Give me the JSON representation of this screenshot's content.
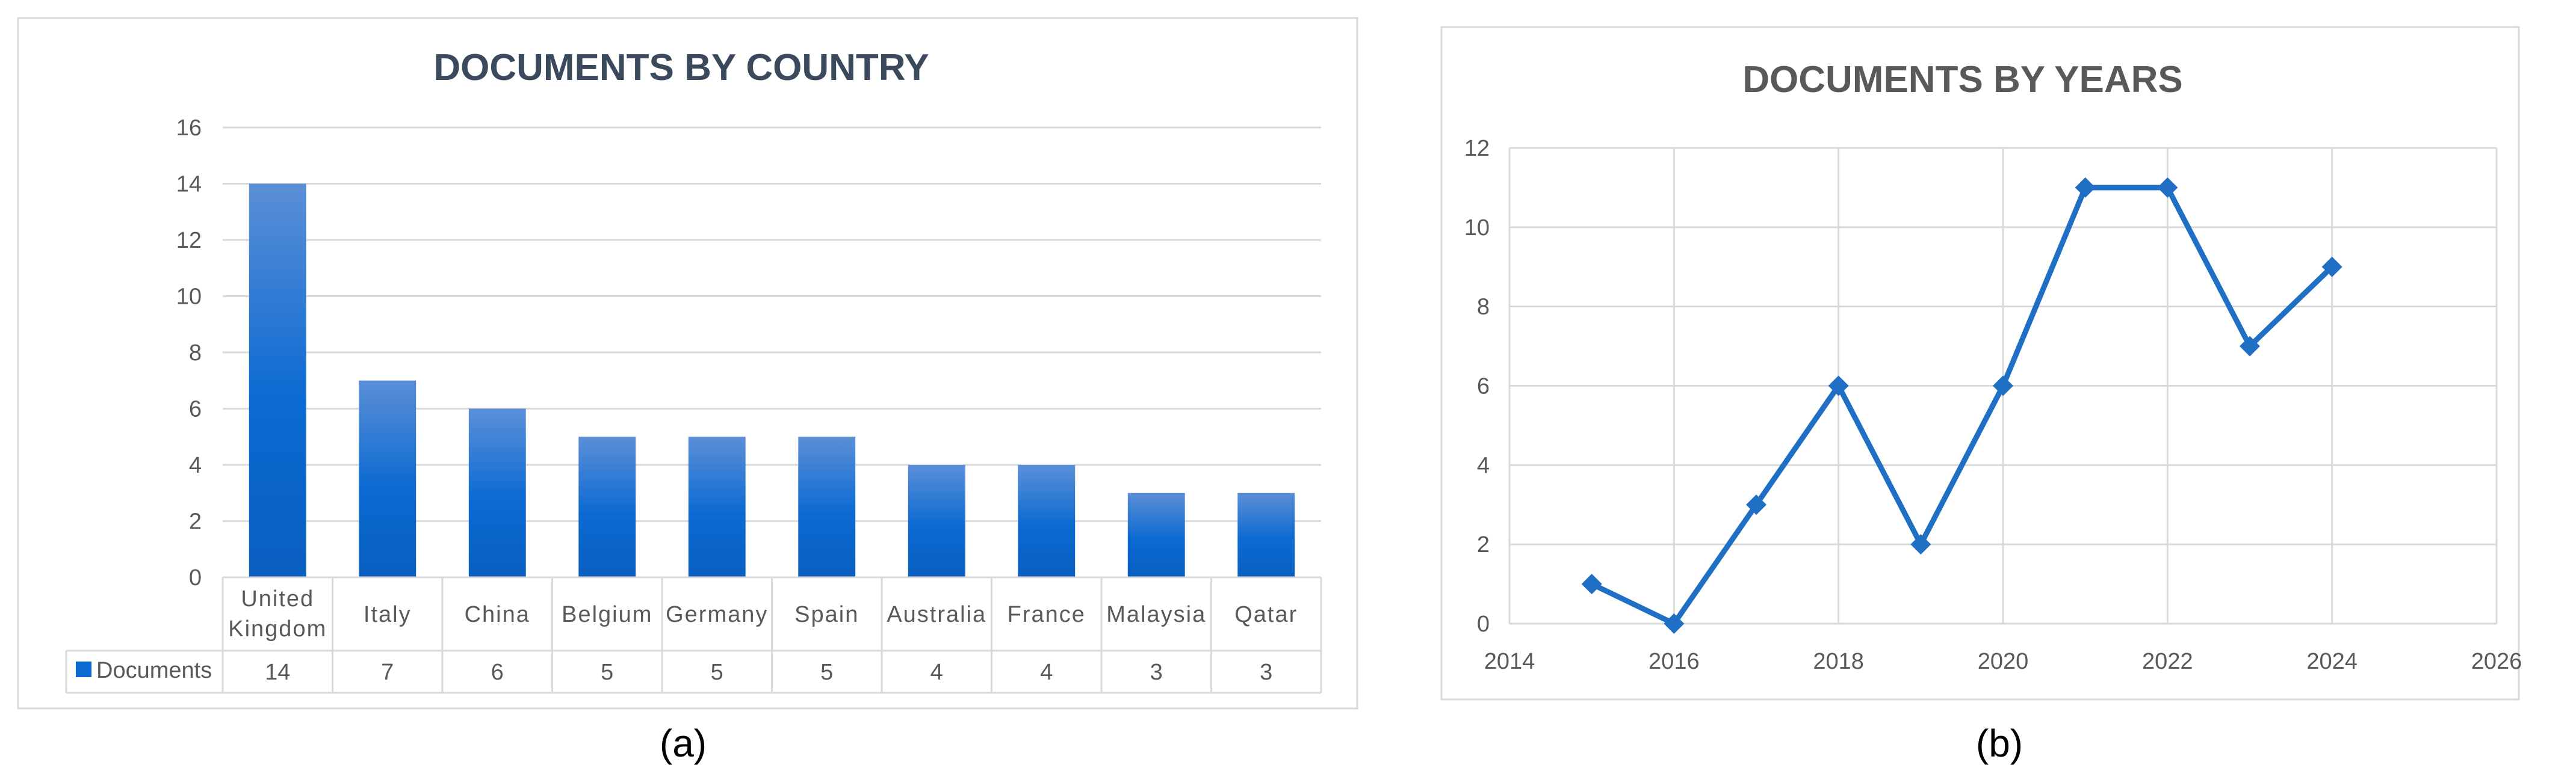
{
  "panels": {
    "a_label": "(a)",
    "b_label": "(b)"
  },
  "colors": {
    "bar_top": "#5b8fd6",
    "bar_bottom": "#0a5fc0",
    "line": "#1f6fc4",
    "title_a": "#3a4a5c",
    "title_b": "#595959",
    "grid": "#d9d9d9",
    "frame": "#d9d9d9",
    "tick_text": "#595959"
  },
  "chart_data": [
    {
      "type": "bar",
      "title": "DOCUMENTS BY COUNTRY",
      "categories": [
        "United Kingdom",
        "Italy",
        "China",
        "Belgium",
        "Germany",
        "Spain",
        "Australia",
        "France",
        "Malaysia",
        "Qatar"
      ],
      "category_lines": [
        [
          "United",
          "Kingdom"
        ],
        [
          "Italy"
        ],
        [
          "China"
        ],
        [
          "Belgium"
        ],
        [
          "Germany"
        ],
        [
          "Spain"
        ],
        [
          "Australia"
        ],
        [
          "France"
        ],
        [
          "Malaysia"
        ],
        [
          "Qatar"
        ]
      ],
      "series": [
        {
          "name": "Documents",
          "values": [
            14,
            7,
            6,
            5,
            5,
            5,
            4,
            4,
            3,
            3
          ]
        }
      ],
      "data_table": true,
      "ylim": [
        0,
        16
      ],
      "yticks": [
        0,
        2,
        4,
        6,
        8,
        10,
        12,
        14,
        16
      ],
      "grid": true,
      "legend": "data-table-row"
    },
    {
      "type": "line",
      "title": "DOCUMENTS BY YEARS",
      "x": [
        2015,
        2016,
        2017,
        2018,
        2019,
        2020,
        2021,
        2022,
        2023,
        2024
      ],
      "y": [
        1,
        0,
        3,
        6,
        2,
        6,
        11,
        11,
        7,
        9
      ],
      "marker": "diamond",
      "xlim": [
        2014,
        2026
      ],
      "xticks": [
        2014,
        2016,
        2018,
        2020,
        2022,
        2024,
        2026
      ],
      "ylim": [
        0,
        12
      ],
      "yticks": [
        0,
        2,
        4,
        6,
        8,
        10,
        12
      ],
      "grid": true
    }
  ]
}
